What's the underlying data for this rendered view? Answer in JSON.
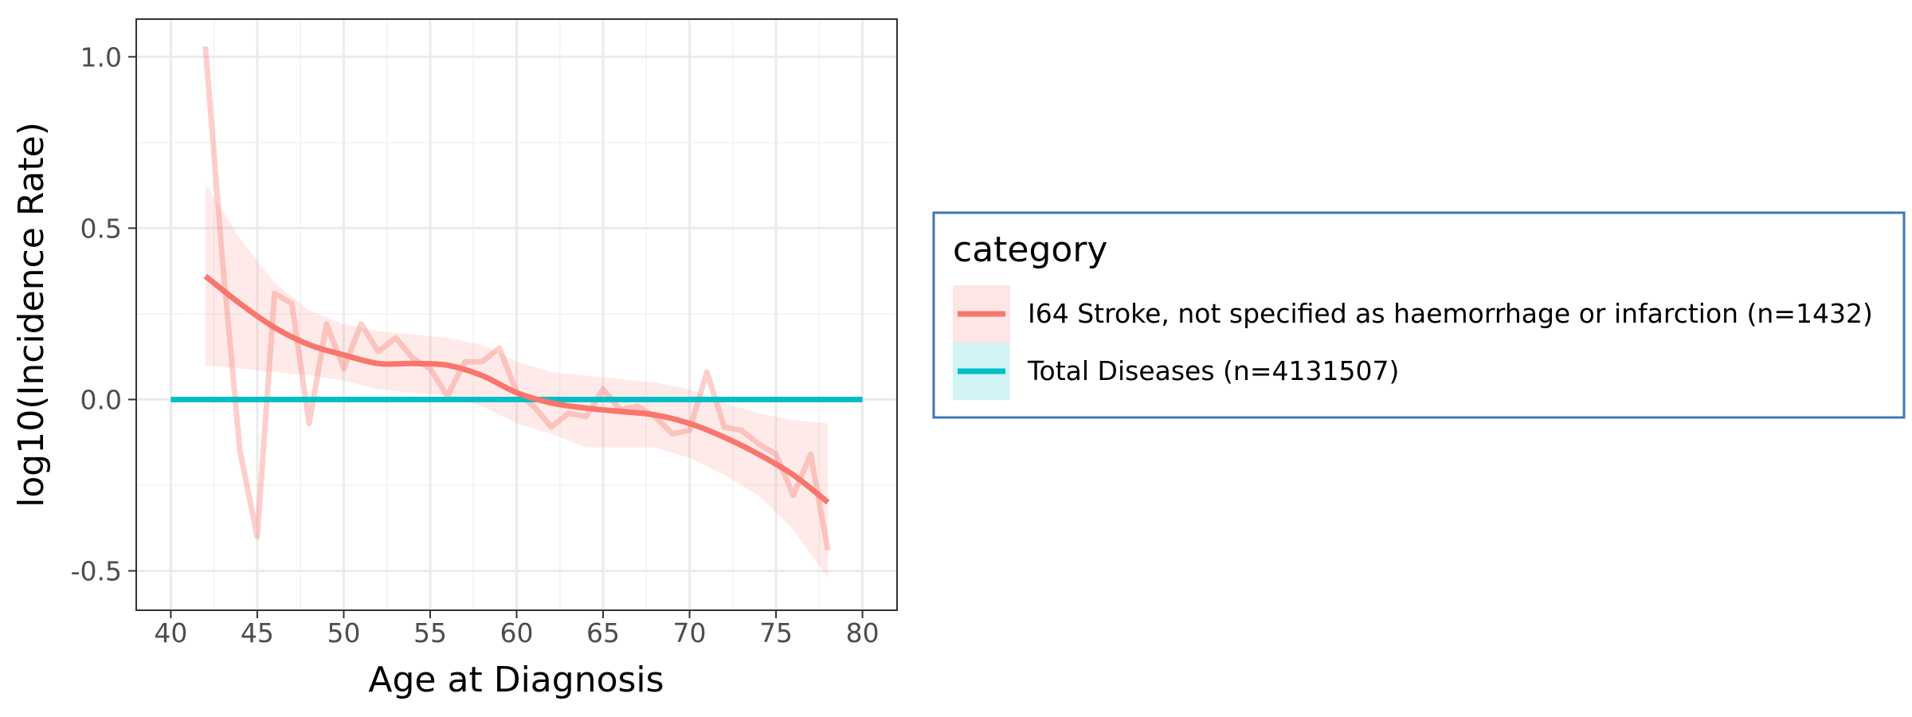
{
  "chart_data": {
    "type": "line",
    "title": "",
    "xlabel": "Age at Diagnosis",
    "ylabel": "log10(Incidence Rate)",
    "xlim": [
      38,
      82
    ],
    "ylim": [
      -0.615,
      1.11
    ],
    "x_ticks": [
      40,
      45,
      50,
      55,
      60,
      65,
      70,
      75,
      80
    ],
    "x_tick_labels": [
      "40",
      "45",
      "50",
      "55",
      "60",
      "65",
      "70",
      "75",
      "80"
    ],
    "y_ticks": [
      -0.5,
      0.0,
      0.5,
      1.0
    ],
    "y_tick_labels": [
      "-0.5",
      "0.0",
      "0.5",
      "1.0"
    ],
    "grid": true,
    "legend": {
      "title": "category",
      "position": "right",
      "entries": [
        "I64 Stroke, not specified as haemorrhage or infarction (n=1432)",
        "Total Diseases (n=4131507)"
      ]
    },
    "series": [
      {
        "name": "I64 Stroke, not specified as haemorrhage or infarction (n=1432)",
        "color": "#F8766D",
        "raw": {
          "x": [
            42,
            43,
            44,
            45,
            46,
            47,
            48,
            49,
            50,
            51,
            52,
            53,
            54,
            55,
            56,
            57,
            58,
            59,
            60,
            61,
            62,
            63,
            64,
            65,
            66,
            67,
            68,
            69,
            70,
            71,
            72,
            73,
            74,
            75,
            76,
            77,
            78
          ],
          "y": [
            1.03,
            0.4,
            -0.15,
            -0.4,
            0.31,
            0.28,
            -0.07,
            0.22,
            0.09,
            0.22,
            0.14,
            0.18,
            0.12,
            0.09,
            0.01,
            0.11,
            0.11,
            0.15,
            0.02,
            -0.02,
            -0.08,
            -0.04,
            -0.05,
            0.03,
            -0.03,
            -0.02,
            -0.05,
            -0.1,
            -0.09,
            0.08,
            -0.08,
            -0.09,
            -0.13,
            -0.16,
            -0.28,
            -0.16,
            -0.44
          ]
        },
        "smooth": {
          "x": [
            42,
            44,
            46,
            48,
            50,
            52,
            54,
            56,
            58,
            60,
            62,
            64,
            66,
            68,
            70,
            72,
            74,
            76,
            78
          ],
          "y": [
            0.36,
            0.28,
            0.21,
            0.16,
            0.13,
            0.105,
            0.105,
            0.1,
            0.07,
            0.02,
            -0.01,
            -0.025,
            -0.035,
            -0.045,
            -0.07,
            -0.11,
            -0.16,
            -0.22,
            -0.3
          ]
        },
        "ci": {
          "x": [
            42,
            44,
            46,
            48,
            50,
            52,
            54,
            56,
            58,
            60,
            62,
            64,
            66,
            68,
            70,
            72,
            74,
            76,
            78
          ],
          "lower": [
            0.1,
            0.09,
            0.08,
            0.07,
            0.055,
            0.03,
            0.02,
            0.01,
            -0.02,
            -0.07,
            -0.1,
            -0.14,
            -0.14,
            -0.14,
            -0.17,
            -0.22,
            -0.28,
            -0.38,
            -0.52
          ],
          "upper": [
            0.63,
            0.47,
            0.34,
            0.26,
            0.22,
            0.2,
            0.19,
            0.18,
            0.16,
            0.11,
            0.08,
            0.07,
            0.06,
            0.05,
            0.03,
            -0.01,
            -0.04,
            -0.06,
            -0.07
          ]
        }
      },
      {
        "name": "Total Diseases (n=4131507)",
        "color": "#00BFC4",
        "x": [
          40,
          80
        ],
        "y": [
          0.0,
          0.0
        ]
      }
    ]
  }
}
